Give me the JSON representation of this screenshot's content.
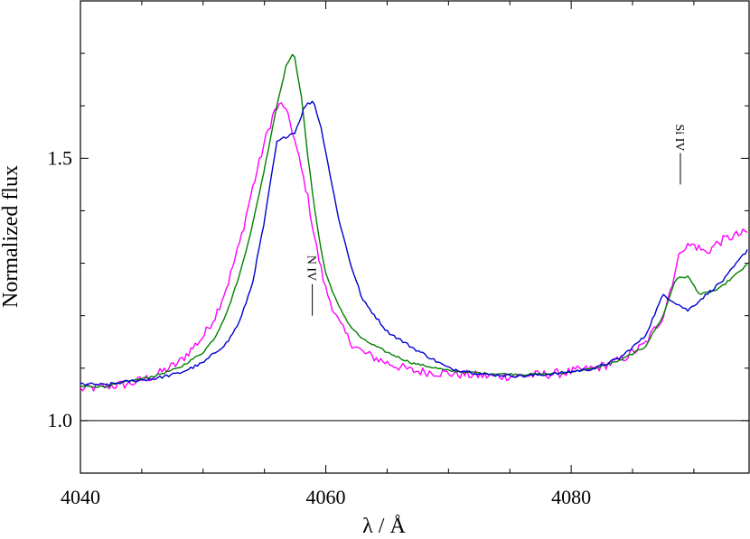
{
  "chart_data": {
    "type": "line",
    "title": "",
    "xlabel": "λ / Å",
    "ylabel": "Normalized flux",
    "xlim": [
      4040,
      4094.5
    ],
    "ylim": [
      0.9,
      1.8
    ],
    "x_ticks_labeled": [
      4040,
      4060,
      4080
    ],
    "x_tick_labels": [
      "4040",
      "4060",
      "4080"
    ],
    "x_minor_step": 5,
    "y_ticks_labeled": [
      1.0,
      1.5
    ],
    "y_tick_labels": [
      "1.0",
      "1.5"
    ],
    "y_minor_step": 0.1,
    "reference_line_y": 1.0,
    "grid": false,
    "legend": "none",
    "line_ids": [
      {
        "label": "N IV",
        "wavelength": 4058.9,
        "y_low": 1.2,
        "y_high": 1.26
      },
      {
        "label": "Si IV",
        "wavelength": 4088.9,
        "y_low": 1.45,
        "y_high": 1.51
      }
    ],
    "series": [
      {
        "color": "#ff00ff",
        "noise": 0.009,
        "x": [
          4040,
          4042,
          4044,
          4046,
          4048,
          4050,
          4051,
          4052,
          4053,
          4054,
          4055,
          4055.8,
          4056.5,
          4057.2,
          4058,
          4058.5,
          4059,
          4059.5,
          4060,
          4061,
          4062,
          4063,
          4065,
          4067,
          4070,
          4073,
          4076,
          4079,
          4082,
          4084,
          4086,
          4087.5,
          4089,
          4090,
          4091,
          4092,
          4093,
          4094.5
        ],
        "y": [
          1.06,
          1.065,
          1.07,
          1.085,
          1.11,
          1.16,
          1.2,
          1.26,
          1.34,
          1.44,
          1.53,
          1.59,
          1.605,
          1.56,
          1.48,
          1.43,
          1.36,
          1.3,
          1.25,
          1.19,
          1.15,
          1.13,
          1.11,
          1.095,
          1.09,
          1.085,
          1.085,
          1.09,
          1.1,
          1.115,
          1.145,
          1.2,
          1.33,
          1.335,
          1.32,
          1.34,
          1.35,
          1.36
        ]
      },
      {
        "color": "#008000",
        "noise": 0.002,
        "x": [
          4040,
          4042,
          4044,
          4046,
          4048,
          4050,
          4051,
          4052,
          4053,
          4054,
          4055,
          4056,
          4056.8,
          4057.4,
          4058,
          4058.5,
          4059,
          4059.5,
          4060,
          4061,
          4062,
          4063,
          4065,
          4067,
          4070,
          4073,
          4076,
          4079,
          4082,
          4084,
          4086,
          4087.5,
          4088.5,
          4089.5,
          4090.5,
          4092,
          4094.5
        ],
        "y": [
          1.065,
          1.065,
          1.075,
          1.085,
          1.1,
          1.13,
          1.16,
          1.21,
          1.28,
          1.37,
          1.48,
          1.6,
          1.68,
          1.7,
          1.62,
          1.51,
          1.42,
          1.34,
          1.28,
          1.22,
          1.18,
          1.155,
          1.13,
          1.11,
          1.095,
          1.09,
          1.088,
          1.09,
          1.1,
          1.115,
          1.14,
          1.2,
          1.27,
          1.275,
          1.24,
          1.25,
          1.3
        ]
      },
      {
        "color": "#0000cc",
        "noise": 0.003,
        "x": [
          4040,
          4042,
          4044,
          4046,
          4048,
          4050,
          4052,
          4053,
          4054,
          4055,
          4056,
          4057,
          4057.5,
          4058.3,
          4059,
          4059.7,
          4060.5,
          4061,
          4062,
          4063,
          4064,
          4065,
          4067,
          4070,
          4073,
          4076,
          4079,
          4082,
          4084,
          4086,
          4087.5,
          4088.5,
          4089.5,
          4091,
          4092.5,
          4094.5
        ],
        "y": [
          1.07,
          1.068,
          1.075,
          1.08,
          1.09,
          1.11,
          1.15,
          1.19,
          1.26,
          1.38,
          1.53,
          1.545,
          1.55,
          1.6,
          1.61,
          1.55,
          1.45,
          1.39,
          1.3,
          1.23,
          1.2,
          1.17,
          1.14,
          1.1,
          1.088,
          1.085,
          1.09,
          1.1,
          1.12,
          1.16,
          1.24,
          1.225,
          1.21,
          1.24,
          1.27,
          1.33
        ]
      }
    ]
  }
}
